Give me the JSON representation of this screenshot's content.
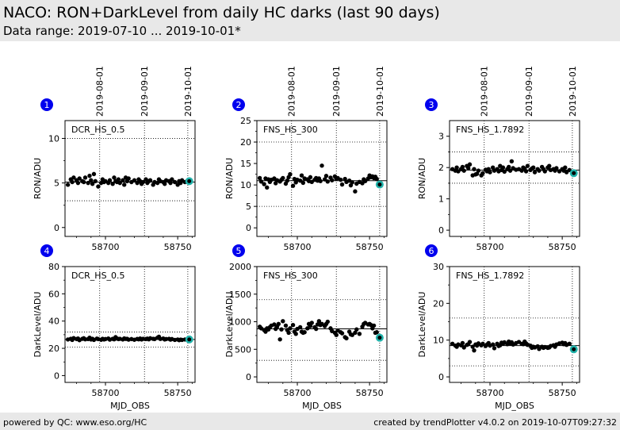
{
  "header": {
    "title": "NACO: RON+DarkLevel from daily HC darks (last 90 days)",
    "subtitle": "Data range: 2019-07-10 ... 2019-10-01*"
  },
  "footer": {
    "left": "powered by QC: www.eso.org/HC",
    "right": "created by trendPlotter v4.0.2 on 2019-10-07T09:27:32"
  },
  "colors": {
    "points": "#000000",
    "highlight": "#20b2aa",
    "badge": "#0000ee"
  },
  "chart_data": [
    {
      "id": "1",
      "type": "scatter",
      "label": "DCR_HS_0.5",
      "ylabel": "RON/ADU",
      "xlabel": "",
      "ylim": [
        -1,
        12
      ],
      "yticks": [
        0,
        5,
        10
      ],
      "reflines": [
        3,
        5.1,
        10
      ],
      "meanline": 5.1,
      "xlim": [
        58672,
        58762
      ],
      "xticks": [
        58700,
        58750
      ],
      "datelines": [
        {
          "x": 58696,
          "label": "2019-08-01"
        },
        {
          "x": 58727,
          "label": "2019-09-01"
        },
        {
          "x": 58757,
          "label": "2019-10-01"
        }
      ],
      "highlight": {
        "x": 58758,
        "y": 5.2
      },
      "x": [
        58674,
        58676,
        58677,
        58678,
        58680,
        58681,
        58682,
        58684,
        58685,
        58686,
        58688,
        58689,
        58690,
        58691,
        58692,
        58693,
        58695,
        58697,
        58698,
        58699,
        58700,
        58702,
        58703,
        58705,
        58706,
        58707,
        58708,
        58709,
        58710,
        58712,
        58713,
        58714,
        58715,
        58716,
        58718,
        58720,
        58722,
        58723,
        58724,
        58725,
        58726,
        58728,
        58729,
        58730,
        58731,
        58733,
        58734,
        58736,
        58737,
        58738,
        58740,
        58741,
        58742,
        58744,
        58745,
        58746,
        58748,
        58750,
        58751,
        58752,
        58753,
        58755
      ],
      "y": [
        4.8,
        5.4,
        5.1,
        5.6,
        5.3,
        5.0,
        5.5,
        5.2,
        5.1,
        5.6,
        5.0,
        5.8,
        5.3,
        4.9,
        6.0,
        5.2,
        4.6,
        5.0,
        5.4,
        5.1,
        5.2,
        5.0,
        5.3,
        4.9,
        5.6,
        5.2,
        5.1,
        5.4,
        5.0,
        5.3,
        4.8,
        5.6,
        5.2,
        5.5,
        5.1,
        5.3,
        5.0,
        5.4,
        5.2,
        4.9,
        5.1,
        5.4,
        5.0,
        5.2,
        5.3,
        4.8,
        5.1,
        5.0,
        5.4,
        5.2,
        5.1,
        4.9,
        5.3,
        5.2,
        5.0,
        5.4,
        5.1,
        4.8,
        5.2,
        5.0,
        5.3,
        5.1
      ]
    },
    {
      "id": "2",
      "type": "scatter",
      "label": "FNS_HS_300",
      "ylabel": "RON/ADU",
      "xlabel": "",
      "ylim": [
        -2,
        25
      ],
      "yticks": [
        0,
        5,
        10,
        15,
        20,
        25
      ],
      "reflines": [
        5,
        11,
        20
      ],
      "meanline": 11,
      "xlim": [
        58672,
        58762
      ],
      "xticks": [
        58700,
        58750
      ],
      "datelines": [
        {
          "x": 58696,
          "label": "2019-08-01"
        },
        {
          "x": 58727,
          "label": "2019-09-01"
        },
        {
          "x": 58757,
          "label": "2019-10-01"
        }
      ],
      "highlight": {
        "x": 58757,
        "y": 10.1
      },
      "x": [
        58674,
        58675,
        58677,
        58678,
        58679,
        58680,
        58681,
        58682,
        58684,
        58685,
        58686,
        58688,
        58689,
        58690,
        58692,
        58693,
        58694,
        58695,
        58697,
        58698,
        58699,
        58700,
        58702,
        58703,
        58704,
        58705,
        58707,
        58708,
        58709,
        58710,
        58712,
        58713,
        58714,
        58715,
        58716,
        58717,
        58719,
        58720,
        58721,
        58723,
        58724,
        58726,
        58727,
        58728,
        58730,
        58731,
        58733,
        58734,
        58736,
        58737,
        58738,
        58740,
        58741,
        58743,
        58745,
        58746,
        58747,
        58749,
        58750,
        58751,
        58752,
        58753,
        58754,
        58755
      ],
      "y": [
        11.6,
        10.8,
        10.2,
        11.5,
        9.4,
        11.3,
        10.7,
        11.2,
        11.5,
        10.4,
        11.1,
        10.8,
        11.2,
        11.6,
        10.3,
        11.0,
        11.8,
        12.5,
        9.8,
        11.4,
        10.6,
        11.2,
        11.0,
        12.2,
        10.5,
        11.5,
        11.3,
        10.9,
        11.8,
        10.7,
        11.2,
        11.6,
        11.0,
        11.5,
        10.9,
        14.5,
        11.3,
        12.1,
        10.8,
        11.7,
        11.1,
        12.0,
        11.4,
        11.6,
        11.2,
        10.1,
        11.4,
        10.7,
        11.0,
        9.9,
        10.6,
        8.5,
        10.3,
        10.7,
        10.4,
        11.3,
        10.9,
        11.5,
        12.2,
        11.8,
        12.0,
        11.6,
        11.9,
        11.4
      ]
    },
    {
      "id": "3",
      "type": "scatter",
      "label": "FNS_HS_1.7892",
      "ylabel": "RON/ADU",
      "xlabel": "",
      "ylim": [
        -0.2,
        3.5
      ],
      "yticks": [
        0,
        1,
        2,
        3
      ],
      "reflines": [
        1.5,
        1.92,
        2.5
      ],
      "meanline": 1.92,
      "xlim": [
        58672,
        58762
      ],
      "xticks": [
        58700,
        58750
      ],
      "datelines": [
        {
          "x": 58696,
          "label": "2019-08-01"
        },
        {
          "x": 58727,
          "label": "2019-09-01"
        },
        {
          "x": 58757,
          "label": "2019-10-01"
        }
      ],
      "highlight": {
        "x": 58758,
        "y": 1.82
      },
      "x": [
        58674,
        58676,
        58677,
        58678,
        58680,
        58681,
        58682,
        58684,
        58685,
        58686,
        58688,
        58689,
        58690,
        58691,
        58692,
        58694,
        58695,
        58697,
        58698,
        58699,
        58700,
        58702,
        58703,
        58705,
        58706,
        58707,
        58708,
        58709,
        58710,
        58712,
        58713,
        58714,
        58715,
        58716,
        58718,
        58720,
        58722,
        58723,
        58724,
        58725,
        58726,
        58728,
        58729,
        58730,
        58731,
        58733,
        58734,
        58736,
        58737,
        58738,
        58740,
        58741,
        58742,
        58744,
        58745,
        58746,
        58748,
        58750,
        58751,
        58752,
        58753,
        58755
      ],
      "y": [
        1.95,
        1.9,
        2.0,
        1.88,
        1.95,
        2.02,
        1.9,
        2.05,
        1.98,
        2.1,
        1.75,
        1.95,
        1.78,
        1.8,
        1.9,
        1.75,
        1.82,
        1.93,
        1.88,
        1.95,
        1.85,
        2.0,
        1.9,
        1.95,
        1.88,
        2.05,
        1.92,
        2.0,
        1.87,
        1.95,
        2.02,
        1.9,
        2.2,
        1.98,
        1.93,
        1.95,
        1.9,
        2.0,
        1.96,
        1.88,
        2.05,
        1.92,
        1.97,
        2.0,
        1.85,
        1.95,
        1.9,
        2.02,
        1.95,
        1.88,
        2.0,
        2.05,
        1.92,
        1.95,
        1.9,
        1.98,
        1.88,
        1.95,
        1.9,
        2.0,
        1.85,
        1.92
      ]
    },
    {
      "id": "4",
      "type": "scatter",
      "label": "DCR_HS_0.5",
      "ylabel": "DarkLevel/ADU",
      "xlabel": "MJD_OBS",
      "ylim": [
        -5,
        80
      ],
      "yticks": [
        0,
        20,
        40,
        60,
        80
      ],
      "reflines": [
        21,
        26.5,
        32
      ],
      "meanline": 26.5,
      "xlim": [
        58672,
        58762
      ],
      "xticks": [
        58700,
        58750
      ],
      "datelines": [
        {
          "x": 58696,
          "label": ""
        },
        {
          "x": 58727,
          "label": ""
        },
        {
          "x": 58757,
          "label": ""
        }
      ],
      "highlight": {
        "x": 58758,
        "y": 26.5
      },
      "x": [
        58674,
        58676,
        58677,
        58678,
        58680,
        58681,
        58682,
        58684,
        58685,
        58686,
        58688,
        58689,
        58690,
        58691,
        58692,
        58694,
        58695,
        58697,
        58698,
        58699,
        58700,
        58702,
        58703,
        58705,
        58706,
        58707,
        58708,
        58709,
        58710,
        58712,
        58713,
        58714,
        58715,
        58716,
        58718,
        58720,
        58722,
        58723,
        58724,
        58725,
        58726,
        58728,
        58729,
        58730,
        58731,
        58733,
        58734,
        58736,
        58737,
        58738,
        58740,
        58741,
        58742,
        58744,
        58745,
        58746,
        58748,
        58750,
        58751,
        58752,
        58753,
        58755
      ],
      "y": [
        26.5,
        27.0,
        26.2,
        27.5,
        26.8,
        27.2,
        26.0,
        27.0,
        27.4,
        26.6,
        26.8,
        27.8,
        26.5,
        27.0,
        26.2,
        27.1,
        26.8,
        26.3,
        27.0,
        26.5,
        26.8,
        27.2,
        26.4,
        27.0,
        26.6,
        28.2,
        27.2,
        26.8,
        27.0,
        26.5,
        27.3,
        26.9,
        27.0,
        26.4,
        26.8,
        26.3,
        26.9,
        26.6,
        27.2,
        26.5,
        27.0,
        26.8,
        27.1,
        26.6,
        27.4,
        27.0,
        26.8,
        27.8,
        28.5,
        26.9,
        27.2,
        26.5,
        26.8,
        27.0,
        26.4,
        26.8,
        26.2,
        26.5,
        26.0,
        26.4,
        26.2,
        26.5
      ]
    },
    {
      "id": "5",
      "type": "scatter",
      "label": "FNS_HS_300",
      "ylabel": "DarkLevel/ADU",
      "xlabel": "MJD_OBS",
      "ylim": [
        -100,
        2000
      ],
      "yticks": [
        0,
        500,
        1000,
        1500,
        2000
      ],
      "reflines": [
        300,
        870,
        1400
      ],
      "meanline": 870,
      "xlim": [
        58672,
        58762
      ],
      "xticks": [
        58700,
        58750
      ],
      "datelines": [
        {
          "x": 58696,
          "label": ""
        },
        {
          "x": 58727,
          "label": ""
        },
        {
          "x": 58757,
          "label": ""
        }
      ],
      "highlight": {
        "x": 58757,
        "y": 710
      },
      "x": [
        58674,
        58675,
        58677,
        58678,
        58679,
        58680,
        58681,
        58682,
        58684,
        58685,
        58686,
        58687,
        58688,
        58689,
        58690,
        58692,
        58693,
        58694,
        58695,
        58697,
        58698,
        58699,
        58700,
        58702,
        58703,
        58704,
        58705,
        58707,
        58708,
        58709,
        58710,
        58712,
        58713,
        58714,
        58715,
        58716,
        58717,
        58719,
        58720,
        58721,
        58723,
        58724,
        58726,
        58727,
        58728,
        58730,
        58731,
        58733,
        58734,
        58736,
        58737,
        58738,
        58740,
        58741,
        58743,
        58745,
        58746,
        58747,
        58749,
        58750,
        58751,
        58752,
        58753,
        58754,
        58755
      ],
      "y": [
        910,
        880,
        850,
        820,
        880,
        860,
        900,
        930,
        950,
        870,
        910,
        960,
        680,
        860,
        1010,
        930,
        850,
        800,
        880,
        940,
        820,
        780,
        870,
        900,
        820,
        800,
        810,
        880,
        960,
        920,
        980,
        900,
        870,
        950,
        1010,
        940,
        960,
        920,
        960,
        1000,
        880,
        830,
        800,
        760,
        840,
        810,
        790,
        720,
        700,
        820,
        770,
        760,
        800,
        860,
        780,
        910,
        960,
        980,
        950,
        960,
        940,
        880,
        930,
        800,
        810
      ]
    },
    {
      "id": "6",
      "type": "scatter",
      "label": "FNS_HS_1.7892",
      "ylabel": "DarkLevel/ADU",
      "xlabel": "MJD_OBS",
      "ylim": [
        -1.5,
        30
      ],
      "yticks": [
        0,
        10,
        20,
        30
      ],
      "reflines": [
        3,
        8.5,
        16
      ],
      "meanline": 8.5,
      "xlim": [
        58672,
        58762
      ],
      "xticks": [
        58700,
        58750
      ],
      "datelines": [
        {
          "x": 58696,
          "label": ""
        },
        {
          "x": 58727,
          "label": ""
        },
        {
          "x": 58757,
          "label": ""
        }
      ],
      "highlight": {
        "x": 58758,
        "y": 7.5
      },
      "x": [
        58674,
        58676,
        58677,
        58678,
        58680,
        58681,
        58682,
        58684,
        58685,
        58686,
        58688,
        58689,
        58690,
        58691,
        58692,
        58694,
        58695,
        58697,
        58698,
        58699,
        58700,
        58702,
        58703,
        58705,
        58706,
        58707,
        58708,
        58709,
        58710,
        58712,
        58713,
        58714,
        58715,
        58716,
        58718,
        58720,
        58722,
        58723,
        58724,
        58725,
        58726,
        58728,
        58729,
        58730,
        58731,
        58733,
        58734,
        58736,
        58737,
        58738,
        58740,
        58741,
        58742,
        58744,
        58745,
        58746,
        58748,
        58750,
        58751,
        58752,
        58753,
        58755
      ],
      "y": [
        9.0,
        8.5,
        8.2,
        8.8,
        8.6,
        9.2,
        8.0,
        8.7,
        8.9,
        9.5,
        8.2,
        7.2,
        8.8,
        8.5,
        9.1,
        8.6,
        9.0,
        8.4,
        8.8,
        9.2,
        8.5,
        8.8,
        7.8,
        9.0,
        8.4,
        8.6,
        9.3,
        9.0,
        9.4,
        8.9,
        9.6,
        9.1,
        9.4,
        8.8,
        9.2,
        9.5,
        9.0,
        8.9,
        9.6,
        9.1,
        8.7,
        8.5,
        7.9,
        8.2,
        8.0,
        8.3,
        7.6,
        8.2,
        7.9,
        8.1,
        7.9,
        8.0,
        8.4,
        8.6,
        8.2,
        8.8,
        9.1,
        9.3,
        8.9,
        9.2,
        8.7,
        9.0
      ]
    }
  ]
}
